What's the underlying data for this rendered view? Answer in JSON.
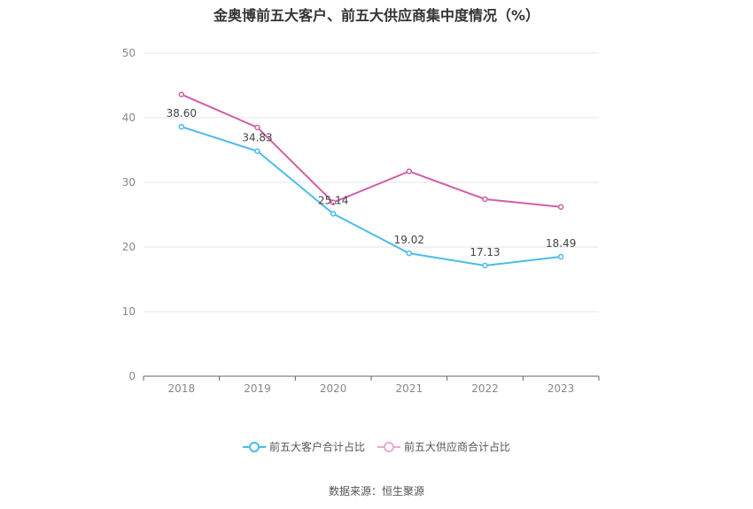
{
  "chart_data": {
    "type": "line",
    "title": "金奥博前五大客户、前五大供应商集中度情况（%）",
    "categories": [
      "2018",
      "2019",
      "2020",
      "2021",
      "2022",
      "2023"
    ],
    "series": [
      {
        "name": "前五大客户合计占比",
        "values": [
          38.6,
          34.83,
          25.14,
          19.02,
          17.13,
          18.49
        ],
        "color": "#4dbbee",
        "show_labels": true
      },
      {
        "name": "前五大供应商合计占比",
        "values": [
          43.6,
          38.5,
          26.9,
          31.7,
          27.4,
          26.2
        ],
        "color": "#d05fa8",
        "show_labels": false
      }
    ],
    "data_labels": [
      "38.60",
      "34.83",
      "25.14",
      "19.02",
      "17.13",
      "18.49"
    ],
    "y_ticks": [
      "0",
      "10",
      "20",
      "30",
      "40",
      "50"
    ],
    "ylim": [
      0,
      50
    ],
    "grid": true,
    "legend_position": "bottom"
  },
  "source": "数据来源：恒生聚源"
}
